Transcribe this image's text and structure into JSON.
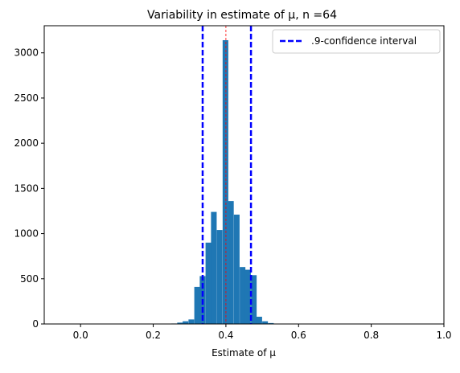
{
  "chart_data": {
    "type": "bar",
    "title": "Variability in estimate of μ, n =64",
    "xlabel": "Estimate of μ",
    "ylabel": "",
    "xlim": [
      -0.1,
      1.0
    ],
    "ylim": [
      0,
      3300
    ],
    "xticks": [
      0.0,
      0.2,
      0.4,
      0.6,
      0.8,
      1.0
    ],
    "xtick_labels": [
      "0.0",
      "0.2",
      "0.4",
      "0.6",
      "0.8",
      "1.0"
    ],
    "yticks": [
      0,
      500,
      1000,
      1500,
      2000,
      2500,
      3000
    ],
    "ytick_labels": [
      "0",
      "500",
      "1000",
      "1500",
      "2000",
      "2500",
      "3000"
    ],
    "grid": false,
    "bin_width": 0.0156,
    "bins": [
      {
        "x0": 0.25,
        "value": 5
      },
      {
        "x0": 0.266,
        "value": 15
      },
      {
        "x0": 0.281,
        "value": 30
      },
      {
        "x0": 0.297,
        "value": 50
      },
      {
        "x0": 0.313,
        "value": 410
      },
      {
        "x0": 0.328,
        "value": 530
      },
      {
        "x0": 0.344,
        "value": 900
      },
      {
        "x0": 0.359,
        "value": 1240
      },
      {
        "x0": 0.375,
        "value": 1040
      },
      {
        "x0": 0.391,
        "value": 3140
      },
      {
        "x0": 0.406,
        "value": 1360
      },
      {
        "x0": 0.422,
        "value": 1210
      },
      {
        "x0": 0.438,
        "value": 630
      },
      {
        "x0": 0.453,
        "value": 600
      },
      {
        "x0": 0.469,
        "value": 540
      },
      {
        "x0": 0.484,
        "value": 80
      },
      {
        "x0": 0.5,
        "value": 30
      },
      {
        "x0": 0.516,
        "value": 10
      }
    ],
    "bar_color": "#1f77b4",
    "confidence_interval": [
      0.336,
      0.469
    ],
    "ci_color": "#0000ff",
    "mean_line": 0.4,
    "mean_line_color": "#ff0000",
    "legend": {
      "label": ".9-confidence interval",
      "placement": "top-right"
    }
  }
}
